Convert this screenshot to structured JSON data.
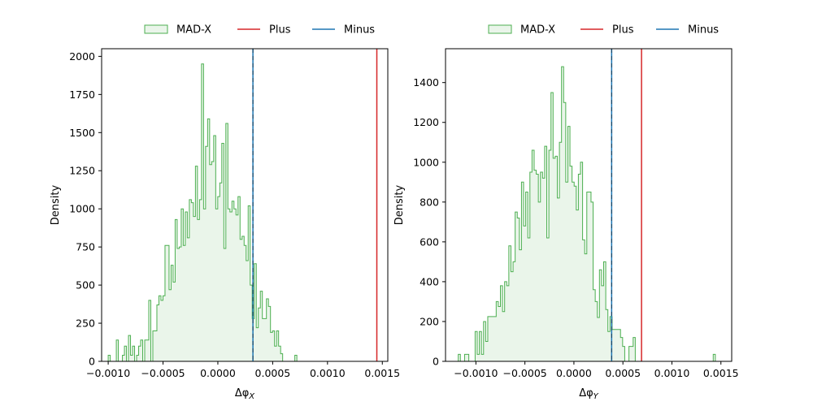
{
  "chart_data": [
    {
      "type": "histogram",
      "xlabel": "Δφ",
      "xlabel_sub": "X",
      "ylabel": "Density",
      "xlim": [
        -0.00106,
        0.00155
      ],
      "ylim": [
        0,
        2050
      ],
      "xticks": [
        -0.001,
        -0.0005,
        0.0,
        0.0005,
        0.001,
        0.0015
      ],
      "xtick_labels": [
        "−0.0010",
        "−0.0005",
        "0.0000",
        "0.0005",
        "0.0010",
        "0.0015"
      ],
      "yticks": [
        0,
        250,
        500,
        750,
        1000,
        1250,
        1500,
        1750,
        2000
      ],
      "ytick_labels": [
        "0",
        "250",
        "500",
        "750",
        "1000",
        "1250",
        "1500",
        "1750",
        "2000"
      ],
      "legend_location": "above",
      "legend": [
        {
          "name": "MAD-X",
          "kind": "patch"
        },
        {
          "name": "Plus",
          "kind": "line"
        },
        {
          "name": "Minus",
          "kind": "line"
        }
      ],
      "series": [
        {
          "name": "MAD-X",
          "color": "#4caf50",
          "fill": "#eaf5ea",
          "bin_start": -0.001,
          "bin_width": 1.85e-05,
          "values": [
            40,
            0,
            0,
            0,
            140,
            0,
            0,
            40,
            100,
            0,
            170,
            40,
            100,
            0,
            40,
            100,
            140,
            0,
            140,
            140,
            400,
            0,
            200,
            200,
            370,
            430,
            400,
            430,
            760,
            760,
            470,
            630,
            520,
            930,
            740,
            750,
            1000,
            760,
            980,
            810,
            1060,
            1040,
            950,
            1280,
            930,
            1060,
            1950,
            1000,
            1410,
            1590,
            1290,
            1310,
            1480,
            1000,
            1080,
            1170,
            1430,
            740,
            1560,
            1000,
            980,
            1050,
            1000,
            960,
            1080,
            800,
            820,
            760,
            660,
            1020,
            500,
            280,
            640,
            220,
            350,
            460,
            280,
            280,
            410,
            360,
            190,
            200,
            100,
            200,
            100,
            50,
            0,
            0,
            0,
            0,
            0,
            0,
            40,
            0,
            0,
            0,
            0,
            0,
            0,
            0,
            0,
            0,
            0,
            0,
            0,
            0,
            0,
            0,
            0,
            0,
            0,
            0,
            0,
            0,
            0,
            0,
            0,
            0
          ]
        },
        {
          "name": "Plus",
          "color": "#d62728",
          "x": 0.00145,
          "kind": "vline"
        },
        {
          "name": "Minus",
          "color": "#1f77b4",
          "x": 0.00032,
          "kind": "vline"
        }
      ]
    },
    {
      "type": "histogram",
      "xlabel": "Δφ",
      "xlabel_sub": "Y",
      "ylabel": "Density",
      "xlim": [
        -0.00131,
        0.00161
      ],
      "ylim": [
        0,
        1570
      ],
      "xticks": [
        -0.001,
        -0.0005,
        0.0,
        0.0005,
        0.001,
        0.0015
      ],
      "xtick_labels": [
        "−0.0010",
        "−0.0005",
        "0.0000",
        "0.0005",
        "0.0010",
        "0.0015"
      ],
      "yticks": [
        0,
        200,
        400,
        600,
        800,
        1000,
        1200,
        1400
      ],
      "ytick_labels": [
        "0",
        "200",
        "400",
        "600",
        "800",
        "1000",
        "1200",
        "1400"
      ],
      "legend_location": "above",
      "legend": [
        {
          "name": "MAD-X",
          "kind": "patch"
        },
        {
          "name": "Plus",
          "kind": "line"
        },
        {
          "name": "Minus",
          "kind": "line"
        }
      ],
      "series": [
        {
          "name": "MAD-X",
          "color": "#4caf50",
          "fill": "#eaf5ea",
          "bin_start": -0.00118,
          "bin_width": 2.15e-05,
          "values": [
            35,
            0,
            0,
            35,
            35,
            0,
            0,
            0,
            150,
            35,
            150,
            35,
            200,
            100,
            225,
            225,
            225,
            225,
            300,
            275,
            380,
            250,
            400,
            380,
            580,
            450,
            500,
            750,
            720,
            560,
            900,
            680,
            850,
            620,
            950,
            1060,
            960,
            940,
            800,
            950,
            920,
            1080,
            620,
            1060,
            1350,
            1020,
            1030,
            820,
            1100,
            1480,
            1300,
            900,
            1180,
            980,
            900,
            880,
            760,
            940,
            1000,
            610,
            540,
            850,
            850,
            800,
            360,
            300,
            220,
            460,
            380,
            500,
            260,
            150,
            225,
            160,
            160,
            160,
            160,
            120,
            75,
            0,
            0,
            75,
            75,
            120,
            0,
            0,
            0,
            0,
            0,
            0,
            0,
            0,
            0,
            0,
            0,
            0,
            0,
            0,
            0,
            0,
            0,
            0,
            0,
            0,
            0,
            0,
            0,
            0,
            0,
            0,
            0,
            0,
            0,
            0,
            0,
            0,
            0,
            0,
            0,
            0,
            0,
            35
          ]
        },
        {
          "name": "Plus",
          "color": "#d62728",
          "x": 0.00069,
          "kind": "vline"
        },
        {
          "name": "Minus",
          "color": "#1f77b4",
          "x": 0.000385,
          "kind": "vline"
        }
      ]
    }
  ]
}
